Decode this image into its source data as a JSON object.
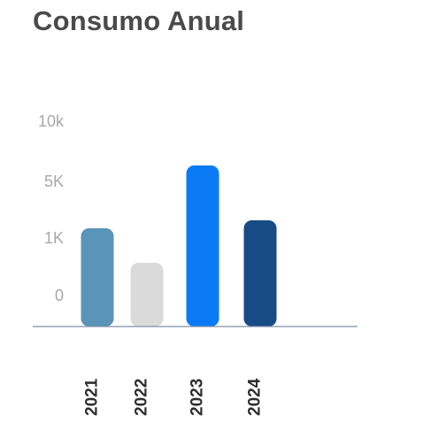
{
  "chart_data": {
    "type": "bar",
    "title": "Consumo Anual",
    "categories": [
      "2021",
      "2022",
      "2023",
      "2024"
    ],
    "values": [
      1800,
      250,
      7500,
      2800
    ],
    "y_tick_labels": [
      "10k",
      "5K",
      "1K",
      "0"
    ],
    "y_tick_values": [
      10000,
      5000,
      1000,
      0
    ],
    "y_scale": "nonlinear (tick labels unevenly spaced in value)",
    "colors": [
      "#5b94b9",
      "#dadada",
      "#0a7bf5",
      "#164b86"
    ],
    "axis_color": "#7f8fa6",
    "grid": false,
    "legend": "none"
  }
}
